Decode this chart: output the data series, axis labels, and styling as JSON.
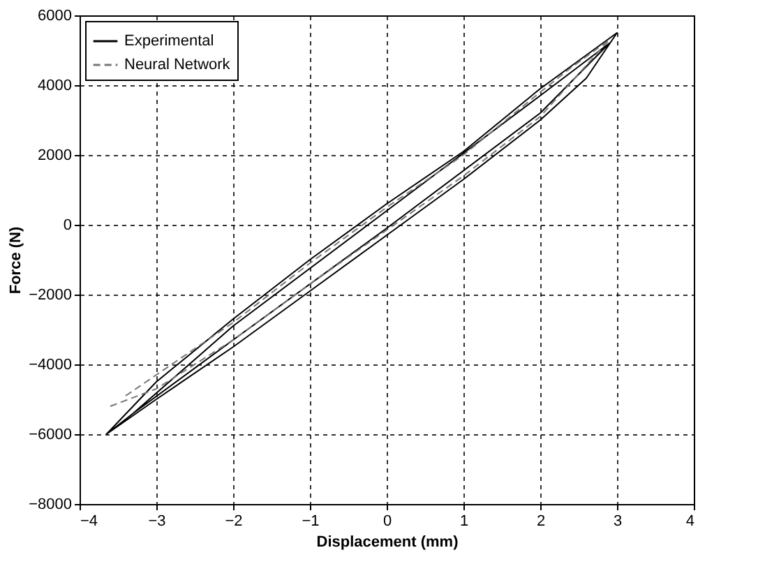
{
  "chart_data": {
    "type": "line",
    "xlabel": "Displacement (mm)",
    "ylabel": "Force (N)",
    "xlim": [
      -4,
      4
    ],
    "xticks": [
      -4,
      -3,
      -2,
      -1,
      0,
      1,
      2,
      3,
      4
    ],
    "ylim": [
      -8000,
      6000
    ],
    "yticks": [
      -8000,
      -6000,
      -4000,
      -2000,
      0,
      2000,
      4000,
      6000
    ],
    "grid": true,
    "legend": "top left",
    "marker": "none",
    "series": [
      {
        "name": "Experimental",
        "color": "#000000",
        "line_style": "solid",
        "x": [
          -3.65,
          -3.0,
          -2.0,
          -1.0,
          0,
          1.0,
          2.0,
          2.6,
          3.0,
          2.5,
          2.0,
          1.0,
          0,
          -1.0,
          -2.0,
          -3.0,
          -3.65,
          -3.3,
          -2.0,
          0,
          2.0,
          2.9,
          2.0,
          0,
          -2.0,
          -3.3
        ],
        "values": [
          -6000,
          -5000,
          -3500,
          -1900,
          -300,
          1300,
          3000,
          4200,
          5500,
          4700,
          3900,
          2100,
          600,
          -1000,
          -2700,
          -4500,
          -6000,
          -5400,
          -3300,
          -100,
          3200,
          5200,
          3700,
          400,
          -2900,
          -5400
        ]
      },
      {
        "name": "Neural Network",
        "color": "#777777",
        "line_style": "dashed",
        "x": [
          -3.6,
          -3.0,
          -2.0,
          -1.0,
          0,
          1.0,
          2.0,
          2.9,
          2.4,
          2.0,
          1.0,
          0,
          -1.0,
          -2.0,
          -3.0,
          -3.4
        ],
        "values": [
          -5200,
          -4700,
          -3300,
          -1700,
          -150,
          1400,
          3100,
          5300,
          4500,
          3800,
          2000,
          500,
          -1100,
          -2800,
          -4300,
          -4900
        ]
      }
    ]
  }
}
